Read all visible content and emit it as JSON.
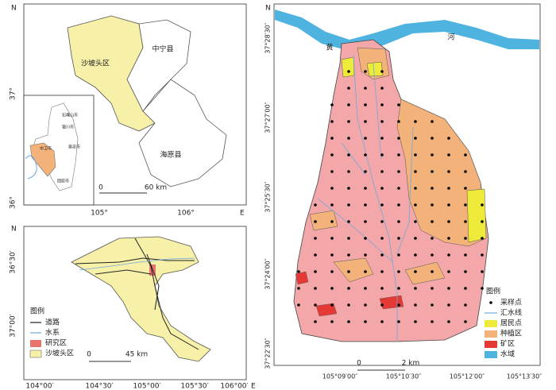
{
  "overview_map": {
    "counties": [
      "沙坡头区",
      "中宁县",
      "海原县"
    ],
    "inset_cities": [
      "石嘴山市",
      "银川市",
      "吴忠市",
      "中卫市",
      "固原市"
    ],
    "north": "N",
    "lat_labels": [
      "37°",
      "36°"
    ],
    "lon_labels": [
      "105°",
      "106°"
    ],
    "east": "E",
    "scale": [
      "0",
      "60 km"
    ]
  },
  "district_map": {
    "north": "N",
    "lat_labels": [
      "36°30′",
      "37°00′"
    ],
    "lon_labels": [
      "104°00′",
      "104°30′",
      "105°00′",
      "105°30′",
      "106°00′"
    ],
    "east": "E",
    "legend_title": "图例",
    "legend": [
      "道路",
      "水系",
      "研究区",
      "沙坡头区"
    ],
    "scale": [
      "0",
      "45 km"
    ]
  },
  "study_map": {
    "north": "N",
    "river": [
      "黄",
      "河"
    ],
    "lat_labels": [
      "37°28′30″",
      "37°27′00″",
      "37°25′30″",
      "37°24′00″",
      "37°22′30″"
    ],
    "lon_labels": [
      "105°09′00″",
      "105°10′30″",
      "105°12′00″",
      "105°13′30″"
    ],
    "legend_title": "图例",
    "legend": [
      "采样点",
      "汇水线",
      "居民点",
      "种植区",
      "矿区",
      "水域"
    ],
    "scale": [
      "0",
      "2 km"
    ]
  }
}
